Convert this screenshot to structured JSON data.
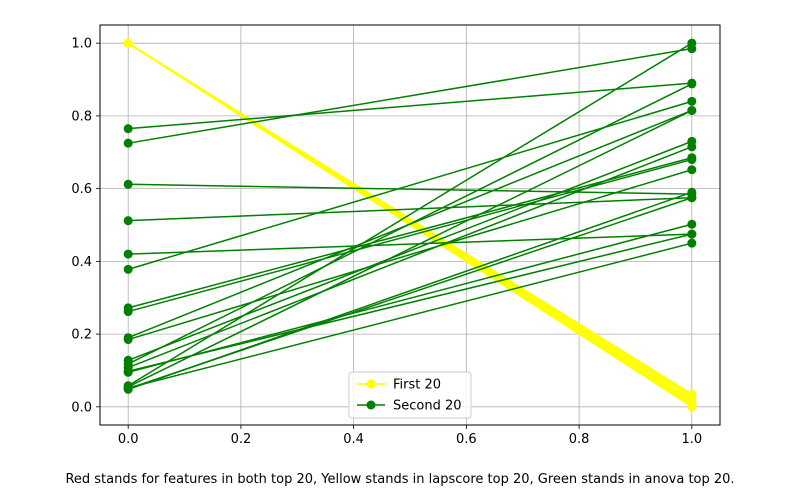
{
  "chart_data": {
    "type": "line",
    "xlim": [
      -0.05,
      1.05
    ],
    "ylim": [
      -0.05,
      1.05
    ],
    "xticks": [
      "0.0",
      "0.2",
      "0.4",
      "0.6",
      "0.8",
      "1.0"
    ],
    "yticks": [
      "0.0",
      "0.2",
      "0.4",
      "0.6",
      "0.8",
      "1.0"
    ],
    "grid": true,
    "legend_placement": "lower-center",
    "series": [
      {
        "name": "First 20",
        "color": "#ffff00",
        "marker": "circle",
        "lines": [
          [
            [
              0,
              1.0
            ],
            [
              1,
              0.035
            ]
          ],
          [
            [
              0,
              1.0
            ],
            [
              1,
              0.03
            ]
          ],
          [
            [
              0,
              1.0
            ],
            [
              1,
              0.025
            ]
          ],
          [
            [
              0,
              1.0
            ],
            [
              1,
              0.02
            ]
          ],
          [
            [
              0,
              1.0
            ],
            [
              1,
              0.015
            ]
          ],
          [
            [
              0,
              1.0
            ],
            [
              1,
              0.01
            ]
          ],
          [
            [
              0,
              1.0
            ],
            [
              1,
              0.008
            ]
          ],
          [
            [
              0,
              1.0
            ],
            [
              1,
              0.005
            ]
          ],
          [
            [
              0,
              1.0
            ],
            [
              1,
              0.003
            ]
          ],
          [
            [
              0,
              1.0
            ],
            [
              1,
              0.0
            ]
          ]
        ]
      },
      {
        "name": "Second 20",
        "color": "#008000",
        "marker": "circle",
        "lines": [
          [
            [
              0,
              0.765
            ],
            [
              1,
              0.89
            ]
          ],
          [
            [
              0,
              0.725
            ],
            [
              1,
              0.985
            ]
          ],
          [
            [
              0,
              0.612
            ],
            [
              1,
              0.585
            ]
          ],
          [
            [
              0,
              0.512
            ],
            [
              1,
              0.575
            ]
          ],
          [
            [
              0,
              0.42
            ],
            [
              1,
              0.475
            ]
          ],
          [
            [
              0,
              0.378
            ],
            [
              1,
              0.84
            ]
          ],
          [
            [
              0,
              0.272
            ],
            [
              1,
              0.685
            ]
          ],
          [
            [
              0,
              0.262
            ],
            [
              1,
              0.68
            ]
          ],
          [
            [
              0,
              0.19
            ],
            [
              1,
              0.815
            ]
          ],
          [
            [
              0,
              0.185
            ],
            [
              1,
              0.652
            ]
          ],
          [
            [
              0,
              0.128
            ],
            [
              1,
              0.73
            ]
          ],
          [
            [
              0,
              0.118
            ],
            [
              1,
              0.888
            ]
          ],
          [
            [
              0,
              0.108
            ],
            [
              1,
              0.715
            ]
          ],
          [
            [
              0,
              0.098
            ],
            [
              1,
              0.475
            ]
          ],
          [
            [
              0,
              0.095
            ],
            [
              1,
              0.502
            ]
          ],
          [
            [
              0,
              0.058
            ],
            [
              1,
              1.0
            ]
          ],
          [
            [
              0,
              0.052
            ],
            [
              1,
              0.45
            ]
          ],
          [
            [
              0,
              0.048
            ],
            [
              1,
              0.59
            ]
          ],
          [
            [
              0,
              0.055
            ],
            [
              1,
              0.815
            ]
          ],
          [
            [
              0,
              0.05
            ],
            [
              1,
              0.575
            ]
          ]
        ]
      }
    ]
  },
  "caption": "Red stands for features in both top 20, Yellow stands in lapscore top 20, Green stands in anova top 20."
}
